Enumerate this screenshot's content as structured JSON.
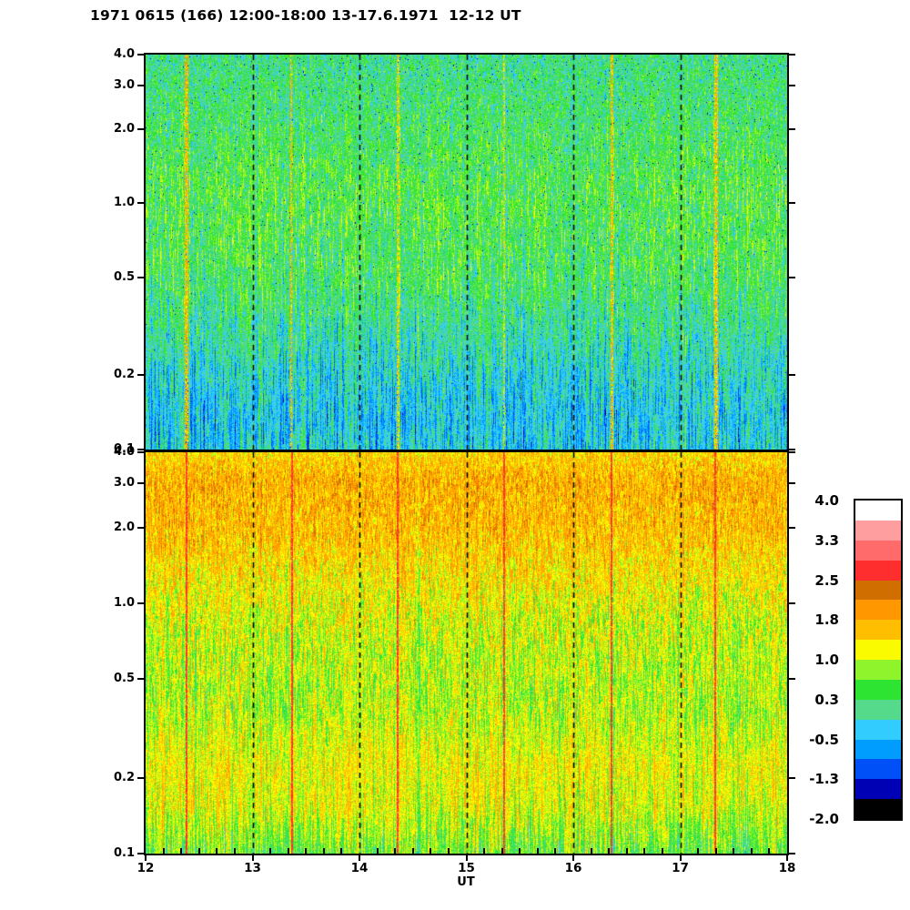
{
  "title": "1971 0615 (166) 12:00-18:00 13-17.6.1971  12-12 UT",
  "chart_data": {
    "type": "heatmap",
    "title": "1971 0615 (166) 12:00-18:00 13-17.6.1971  12-12 UT",
    "x_axis": {
      "label": "UT",
      "min": 12,
      "max": 18,
      "tick_values": [
        12,
        13,
        14,
        15,
        16,
        17,
        18
      ],
      "tick_labels": [
        "12",
        "13",
        "14",
        "15",
        "16",
        "17",
        "18"
      ],
      "minor_ticks_per_hour": 6,
      "dashed_gridline_hours": [
        13,
        14,
        15,
        16,
        17
      ]
    },
    "y_axis": {
      "scale": "log",
      "min": 0.1,
      "max": 4.0,
      "tick_values": [
        4.0,
        3.0,
        2.0,
        1.0,
        0.5,
        0.2,
        0.1
      ],
      "tick_labels": [
        "4.0",
        "3.0",
        "2.0",
        "1.0",
        "0.5",
        "0.2",
        "0.1"
      ]
    },
    "colorbar": {
      "min": -2.0,
      "max": 4.0,
      "tick_labels": [
        "4.0",
        "3.3",
        "2.5",
        "1.8",
        "1.0",
        "0.3",
        "-0.5",
        "-1.3",
        "-2.0"
      ],
      "colors_top_to_bottom": [
        "#FFFFFF",
        "#FF9E9E",
        "#FF6A6A",
        "#FF2E2E",
        "#D06E00",
        "#FF9800",
        "#FFBE00",
        "#FBFB00",
        "#8FF42C",
        "#2EE432",
        "#55DA8C",
        "#33CCFF",
        "#009DFF",
        "#0050F8",
        "#0000B5",
        "#000000"
      ]
    },
    "seed": 19710615,
    "panels": [
      {
        "name": "top",
        "description": "green/cyan noise field, values mostly -0.6..1.0, bluer toward low frequencies",
        "base_profile": [
          [
            0,
            0.12
          ],
          [
            0.15,
            0.25
          ],
          [
            0.35,
            0.42
          ],
          [
            0.55,
            0.33
          ],
          [
            0.7,
            0.05
          ],
          [
            0.82,
            -0.22
          ],
          [
            0.92,
            -0.35
          ],
          [
            1,
            -0.3
          ]
        ],
        "amp_profile": [
          [
            0,
            0.45
          ],
          [
            0.5,
            0.52
          ],
          [
            0.75,
            0.46
          ],
          [
            1,
            0.5
          ]
        ],
        "col_sd": 0.2,
        "col_w0": 0.5,
        "col_w1": 1.1,
        "jitter": 0.3,
        "run_min": 2,
        "run_grow": 26,
        "dot_prob": 0.007,
        "dot_value": -1.55,
        "streaks": [
          {
            "hour": 12.38,
            "width": 4,
            "value": 1.65,
            "jitter": 0.5,
            "gap": 0.2
          },
          {
            "hour": 13.36,
            "width": 2,
            "value": 1.6,
            "jitter": 0.45,
            "gap": 0.25
          },
          {
            "hour": 14.36,
            "width": 3,
            "value": 1.35,
            "jitter": 0.5,
            "gap": 0.3
          },
          {
            "hour": 15.35,
            "width": 2,
            "value": 1.25,
            "jitter": 0.45,
            "gap": 0.4
          },
          {
            "hour": 16.36,
            "width": 3,
            "value": 1.6,
            "jitter": 0.5,
            "gap": 0.25
          },
          {
            "hour": 17.34,
            "width": 4,
            "value": 1.55,
            "jitter": 0.5,
            "gap": 0.2
          }
        ]
      },
      {
        "name": "bottom",
        "description": "orange speckle at high frequencies over yellow/green field, bright yellow band near 0.2, green streaks at bottom",
        "base_profile": [
          [
            0,
            1.4
          ],
          [
            0.07,
            1.75
          ],
          [
            0.2,
            1.6
          ],
          [
            0.35,
            1.2
          ],
          [
            0.5,
            0.95
          ],
          [
            0.65,
            0.9
          ],
          [
            0.78,
            1.2
          ],
          [
            0.88,
            1.1
          ],
          [
            1,
            0.6
          ]
        ],
        "amp_profile": [
          [
            0,
            0.45
          ],
          [
            0.35,
            0.55
          ],
          [
            0.6,
            0.5
          ],
          [
            0.78,
            0.32
          ],
          [
            1,
            0.52
          ]
        ],
        "col_sd": 0.2,
        "col_w0": 0.4,
        "col_w1": 1.3,
        "jitter": 0.32,
        "run_min": 2,
        "run_grow": 30,
        "dot_prob": 0,
        "dot_value": 0,
        "streaks": [
          {
            "hour": 12.38,
            "width": 2,
            "value": 2.7,
            "jitter": 0.25,
            "gap": 0.05
          },
          {
            "hour": 13.37,
            "width": 2,
            "value": 2.7,
            "jitter": 0.25,
            "gap": 0.05
          },
          {
            "hour": 14.36,
            "width": 2,
            "value": 2.7,
            "jitter": 0.25,
            "gap": 0.05
          },
          {
            "hour": 15.35,
            "width": 2,
            "value": 2.7,
            "jitter": 0.25,
            "gap": 0.05
          },
          {
            "hour": 16.36,
            "width": 2,
            "value": 2.7,
            "jitter": 0.25,
            "gap": 0.05
          },
          {
            "hour": 17.33,
            "width": 2,
            "value": 2.7,
            "jitter": 0.25,
            "gap": 0.05
          }
        ]
      }
    ]
  }
}
